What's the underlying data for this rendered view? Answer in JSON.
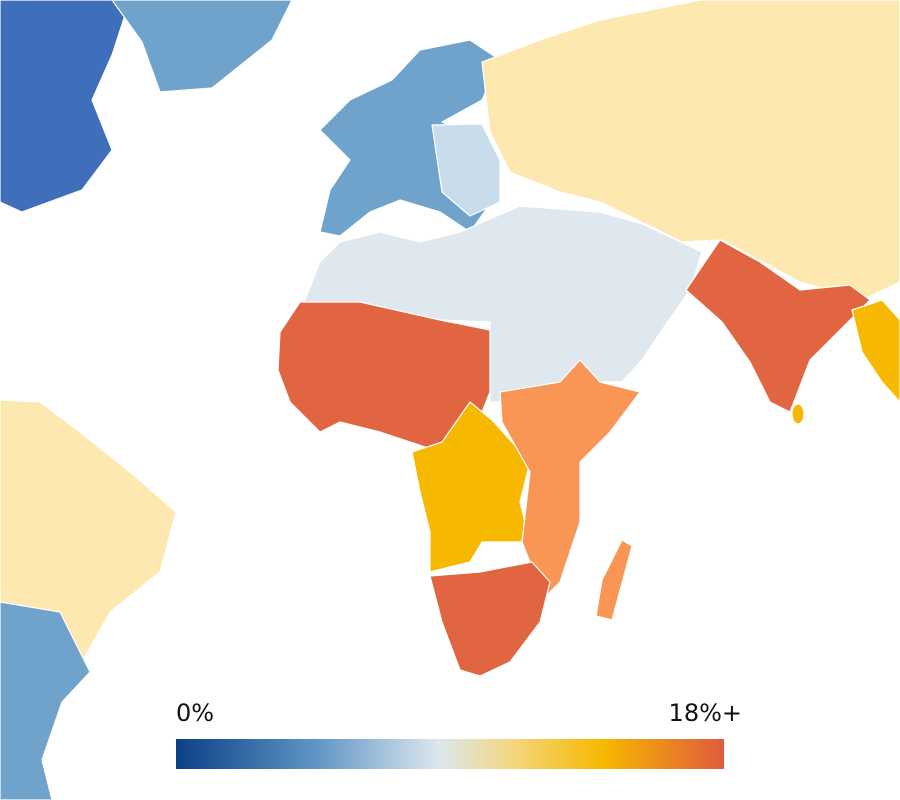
{
  "legend": {
    "min_label": "0%",
    "max_label": "18%+"
  }
}
